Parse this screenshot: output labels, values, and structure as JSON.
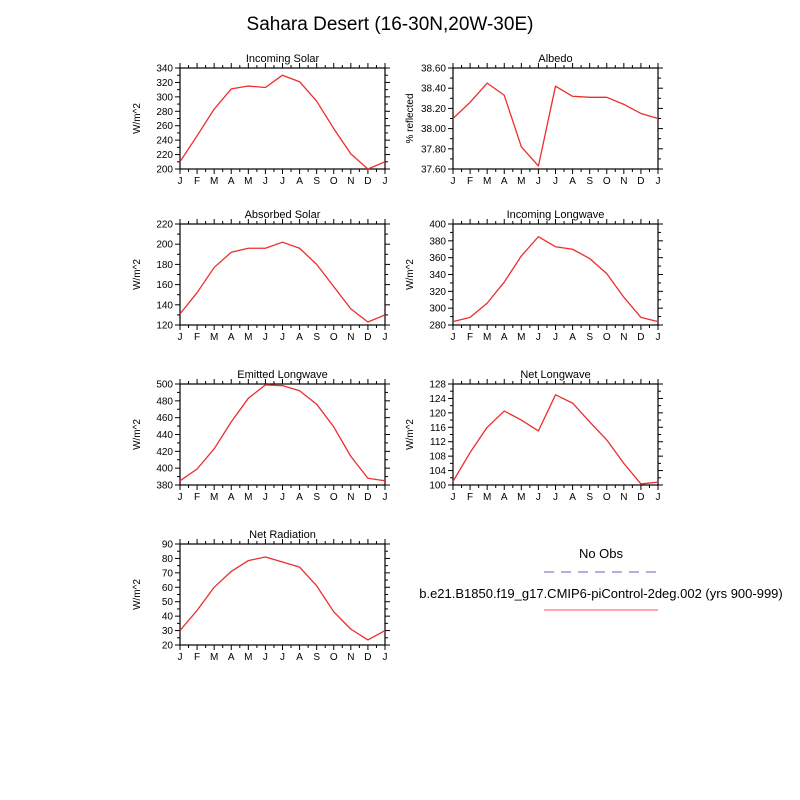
{
  "page_title": "Sahara Desert (16-30N,20W-30E)",
  "months": [
    "J",
    "F",
    "M",
    "A",
    "M",
    "J",
    "J",
    "A",
    "S",
    "O",
    "N",
    "D",
    "J"
  ],
  "line_color": "#ee2c2c",
  "frame_color": "#000000",
  "legend": {
    "no_obs_label": "No Obs",
    "no_obs_color": "#b0b0e8",
    "case_label": "b.e21.B1850.f19_g17.CMIP6-piControl-2deg.002 (yrs 900-999)",
    "case_color": "#ffaaaa"
  },
  "chart_data": [
    {
      "id": "incoming-solar",
      "type": "line",
      "title": "Incoming Solar",
      "ylabel": "W/m^2",
      "ylim": [
        200,
        340
      ],
      "ystep": 20,
      "yticks": [
        "200",
        "220",
        "240",
        "260",
        "280",
        "300",
        "320",
        "340"
      ],
      "grid": false,
      "values": [
        210,
        246,
        283,
        311,
        315,
        313,
        330,
        321,
        294,
        256,
        221,
        200,
        210
      ]
    },
    {
      "id": "albedo",
      "type": "line",
      "title": "Albedo",
      "ylabel": "% reflected",
      "ylim": [
        37.6,
        38.6
      ],
      "ystep": 0.2,
      "yticks": [
        "37.60",
        "37.80",
        "38.00",
        "38.20",
        "38.40",
        "38.60"
      ],
      "grid": false,
      "values": [
        38.1,
        38.26,
        38.45,
        38.33,
        37.82,
        37.63,
        38.42,
        38.32,
        38.31,
        38.31,
        38.24,
        38.15,
        38.1
      ]
    },
    {
      "id": "absorbed-solar",
      "type": "line",
      "title": "Absorbed Solar",
      "ylabel": "W/m^2",
      "ylim": [
        120,
        220
      ],
      "ystep": 20,
      "yticks": [
        "120",
        "140",
        "160",
        "180",
        "200",
        "220"
      ],
      "grid": false,
      "values": [
        131,
        152,
        177,
        192,
        196,
        196,
        202,
        196,
        180,
        158,
        136,
        123,
        130
      ]
    },
    {
      "id": "incoming-longwave",
      "type": "line",
      "title": "Incoming Longwave",
      "ylabel": "W/m^2",
      "ylim": [
        280,
        400
      ],
      "ystep": 20,
      "yticks": [
        "280",
        "300",
        "320",
        "340",
        "360",
        "380",
        "400"
      ],
      "grid": false,
      "values": [
        284,
        289,
        306,
        331,
        362,
        385,
        373,
        370,
        359,
        341,
        313,
        289,
        284
      ]
    },
    {
      "id": "emitted-longwave",
      "type": "line",
      "title": "Emitted Longwave",
      "ylabel": "W/m^2",
      "ylim": [
        380,
        500
      ],
      "ystep": 20,
      "yticks": [
        "380",
        "400",
        "420",
        "440",
        "460",
        "480",
        "500"
      ],
      "grid": false,
      "values": [
        385,
        399,
        423,
        455,
        483,
        499,
        498,
        492,
        476,
        449,
        414,
        388,
        385
      ]
    },
    {
      "id": "net-longwave",
      "type": "line",
      "title": "Net Longwave",
      "ylabel": "W/m^2",
      "ylim": [
        100,
        128
      ],
      "ystep": 4,
      "yticks": [
        "100",
        "104",
        "108",
        "112",
        "116",
        "120",
        "124",
        "128"
      ],
      "grid": false,
      "values": [
        101,
        109,
        116,
        120.5,
        118,
        115,
        125,
        122.7,
        117.5,
        112.5,
        106,
        100.3,
        100.8
      ]
    },
    {
      "id": "net-radiation",
      "type": "line",
      "title": "Net Radiation",
      "ylabel": "W/m^2",
      "ylim": [
        20,
        90
      ],
      "ystep": 10,
      "yticks": [
        "20",
        "30",
        "40",
        "50",
        "60",
        "70",
        "80",
        "90"
      ],
      "grid": false,
      "values": [
        30,
        44,
        60,
        71,
        78.5,
        81,
        77.5,
        74,
        61,
        43,
        31,
        23.5,
        30
      ]
    }
  ]
}
